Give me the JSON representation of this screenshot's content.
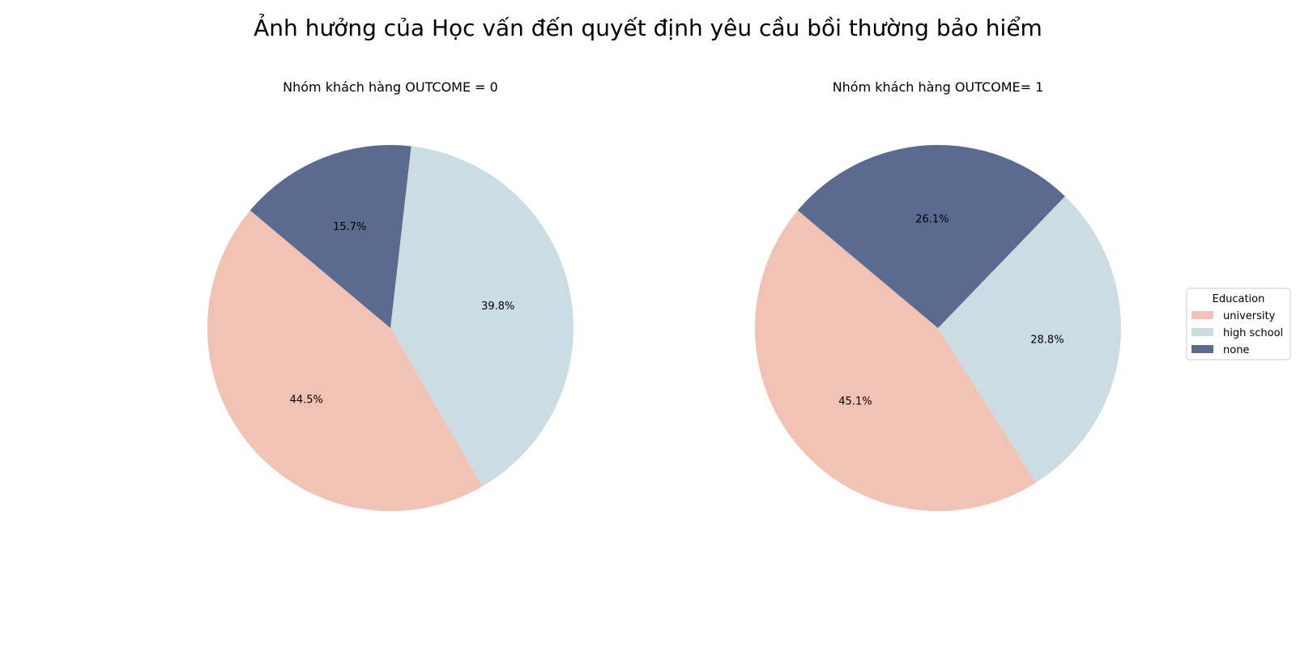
{
  "title": "Ảnh hưởng của Học vấn đến quyết định yêu cầu bồi thường bảo hiểm",
  "legend": {
    "title": "Education",
    "placement": "center-right",
    "entries": [
      "university",
      "high school",
      "none"
    ]
  },
  "colors": {
    "university": "#F2C2B4",
    "high school": "#CBDCE2",
    "none": "#5A6B8F"
  },
  "chart_data": [
    {
      "type": "pie",
      "title": "Nhóm khách hàng OUTCOME = 0",
      "categories": [
        "university",
        "high school",
        "none"
      ],
      "values": [
        44.5,
        39.8,
        15.7
      ],
      "labels": [
        "44.5%",
        "39.8%",
        "15.7%"
      ],
      "start_angle_deg": 140
    },
    {
      "type": "pie",
      "title": "Nhóm khách hàng OUTCOME= 1",
      "categories": [
        "university",
        "high school",
        "none"
      ],
      "values": [
        45.1,
        28.8,
        26.1
      ],
      "labels": [
        "45.1%",
        "28.8%",
        "26.1%"
      ],
      "start_angle_deg": 140
    }
  ]
}
